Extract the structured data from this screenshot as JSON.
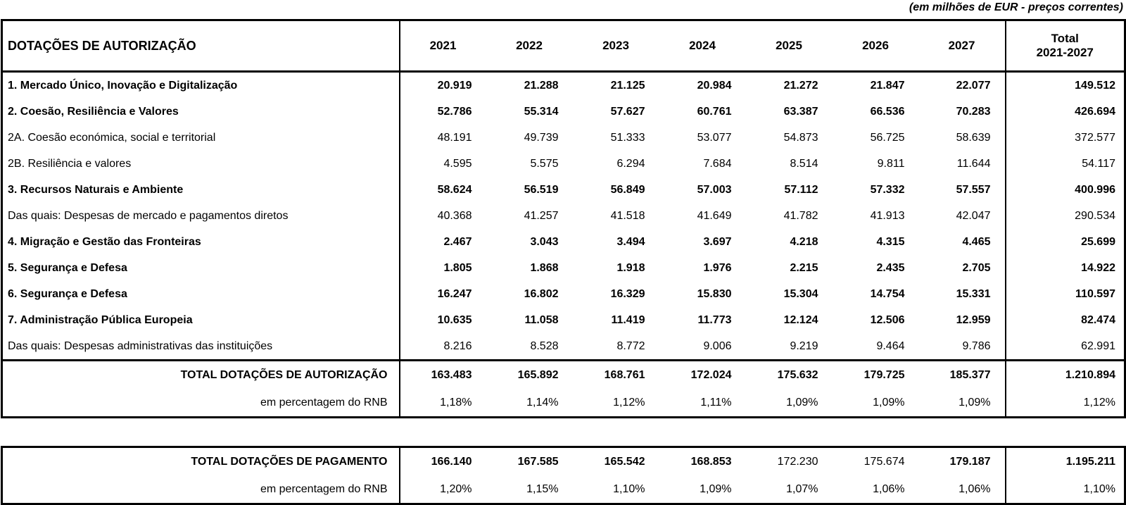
{
  "caption": "(em milhões de EUR - preços correntes)",
  "table1": {
    "title": "DOTAÇÕES DE AUTORIZAÇÃO",
    "years": [
      "2021",
      "2022",
      "2023",
      "2024",
      "2025",
      "2026",
      "2027"
    ],
    "total_header": {
      "line1": "Total",
      "line2": "2021-2027"
    },
    "rows": [
      {
        "label": "1. Mercado Único, Inovação e Digitalização",
        "bold": true,
        "values": [
          "20.919",
          "21.288",
          "21.125",
          "20.984",
          "21.272",
          "21.847",
          "22.077"
        ],
        "total": "149.512"
      },
      {
        "label": "2. Coesão, Resiliência e Valores",
        "bold": true,
        "values": [
          "52.786",
          "55.314",
          "57.627",
          "60.761",
          "63.387",
          "66.536",
          "70.283"
        ],
        "total": "426.694"
      },
      {
        "label": "2A. Coesão económica, social e territorial",
        "bold": false,
        "values": [
          "48.191",
          "49.739",
          "51.333",
          "53.077",
          "54.873",
          "56.725",
          "58.639"
        ],
        "total": "372.577"
      },
      {
        "label": "2B. Resiliência e valores",
        "bold": false,
        "values": [
          "4.595",
          "5.575",
          "6.294",
          "7.684",
          "8.514",
          "9.811",
          "11.644"
        ],
        "total": "54.117"
      },
      {
        "label": "3. Recursos Naturais e Ambiente",
        "bold": true,
        "values": [
          "58.624",
          "56.519",
          "56.849",
          "57.003",
          "57.112",
          "57.332",
          "57.557"
        ],
        "total": "400.996"
      },
      {
        "label": "Das quais: Despesas de mercado e pagamentos diretos",
        "bold": false,
        "values": [
          "40.368",
          "41.257",
          "41.518",
          "41.649",
          "41.782",
          "41.913",
          "42.047"
        ],
        "total": "290.534"
      },
      {
        "label": "4. Migração e Gestão das Fronteiras",
        "bold": true,
        "values": [
          "2.467",
          "3.043",
          "3.494",
          "3.697",
          "4.218",
          "4.315",
          "4.465"
        ],
        "total": "25.699"
      },
      {
        "label": "5. Segurança e Defesa",
        "bold": true,
        "values": [
          "1.805",
          "1.868",
          "1.918",
          "1.976",
          "2.215",
          "2.435",
          "2.705"
        ],
        "total": "14.922"
      },
      {
        "label": "6. Segurança e Defesa",
        "bold": true,
        "values": [
          "16.247",
          "16.802",
          "16.329",
          "15.830",
          "15.304",
          "14.754",
          "15.331"
        ],
        "total": "110.597"
      },
      {
        "label": "7. Administração Pública Europeia",
        "bold": true,
        "values": [
          "10.635",
          "11.058",
          "11.419",
          "11.773",
          "12.124",
          "12.506",
          "12.959"
        ],
        "total": "82.474"
      },
      {
        "label": "Das quais: Despesas administrativas das instituições",
        "bold": false,
        "values": [
          "8.216",
          "8.528",
          "8.772",
          "9.006",
          "9.219",
          "9.464",
          "9.786"
        ],
        "total": "62.991"
      }
    ],
    "total_row": {
      "label": "TOTAL DOTAÇÕES DE AUTORIZAÇÃO",
      "values": [
        "163.483",
        "165.892",
        "168.761",
        "172.024",
        "175.632",
        "179.725",
        "185.377"
      ],
      "total": "1.210.894"
    },
    "pct_row": {
      "label": "em percentagem do RNB",
      "values": [
        "1,18%",
        "1,14%",
        "1,12%",
        "1,11%",
        "1,09%",
        "1,09%",
        "1,09%"
      ],
      "total": "1,12%"
    }
  },
  "table2": {
    "total_row": {
      "label": "TOTAL DOTAÇÕES DE PAGAMENTO",
      "values": [
        "166.140",
        "167.585",
        "165.542",
        "168.853",
        "172.230",
        "175.674",
        "179.187"
      ],
      "values_bold": [
        true,
        true,
        true,
        true,
        false,
        false,
        true
      ],
      "total": "1.195.211"
    },
    "pct_row": {
      "label": "em percentagem do RNB",
      "values": [
        "1,20%",
        "1,15%",
        "1,10%",
        "1,09%",
        "1,07%",
        "1,06%",
        "1,06%"
      ],
      "total": "1,10%"
    }
  }
}
